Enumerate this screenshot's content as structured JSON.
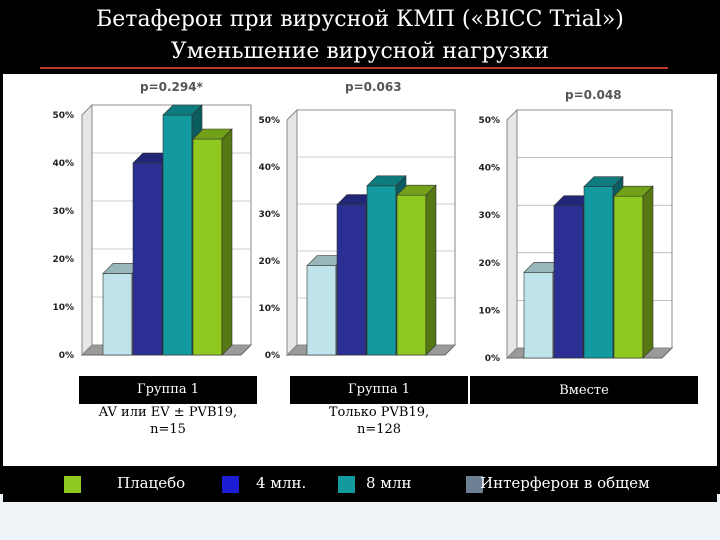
{
  "slide": {
    "title_line1": "Бетаферон при вирусной КМП («BICC Trial»)",
    "title_line2": "Уменьшение вирусной нагрузки"
  },
  "colors": {
    "placebo": "#bfe3ea",
    "low_dose": "#2b2f93",
    "high_dose": "#129a9e",
    "total": "#8fc81f"
  },
  "chart_data": [
    {
      "type": "bar",
      "p_value": "p=0.294*",
      "group_label": "Группа 1",
      "group_desc_1": "AV или EV ± PVB19,",
      "group_desc_2": "n=15",
      "y_ticks": [
        "0%",
        "10%",
        "20%",
        "30%",
        "40%",
        "50%"
      ],
      "ylim": [
        0,
        50
      ],
      "series": [
        {
          "name": "Плацебо",
          "value": 17
        },
        {
          "name": "4 млн.",
          "value": 40
        },
        {
          "name": "8 млн",
          "value": 50
        },
        {
          "name": "Интерферон в общем",
          "value": 45
        }
      ]
    },
    {
      "type": "bar",
      "p_value": "p=0.063",
      "group_label": "Группа 1",
      "group_desc_1": "Только PVB19,",
      "group_desc_2": "n=128",
      "y_ticks": [
        "0%",
        "10%",
        "20%",
        "30%",
        "40%",
        "50%"
      ],
      "ylim": [
        0,
        50
      ],
      "series": [
        {
          "name": "Плацебо",
          "value": 19
        },
        {
          "name": "4 млн.",
          "value": 32
        },
        {
          "name": "8 млн",
          "value": 36
        },
        {
          "name": "Интерферон в общем",
          "value": 34
        }
      ]
    },
    {
      "type": "bar",
      "p_value": "p=0.048",
      "group_label": "Вместе",
      "y_ticks": [
        "0%",
        "10%",
        "20%",
        "30%",
        "40%",
        "50%"
      ],
      "ylim": [
        0,
        50
      ],
      "series": [
        {
          "name": "Плацебо",
          "value": 18
        },
        {
          "name": "4 млн.",
          "value": 32
        },
        {
          "name": "8 млн",
          "value": 36
        },
        {
          "name": "Интерферон в общем",
          "value": 34
        }
      ]
    }
  ],
  "legend": [
    {
      "label": "Плацебо",
      "color": "#8fc81f"
    },
    {
      "label": "4 млн.",
      "color": "#1d1dd6"
    },
    {
      "label": "8 млн",
      "color": "#129a9e"
    },
    {
      "label": "Интерферон в общем",
      "color": "#6d7f92"
    }
  ]
}
